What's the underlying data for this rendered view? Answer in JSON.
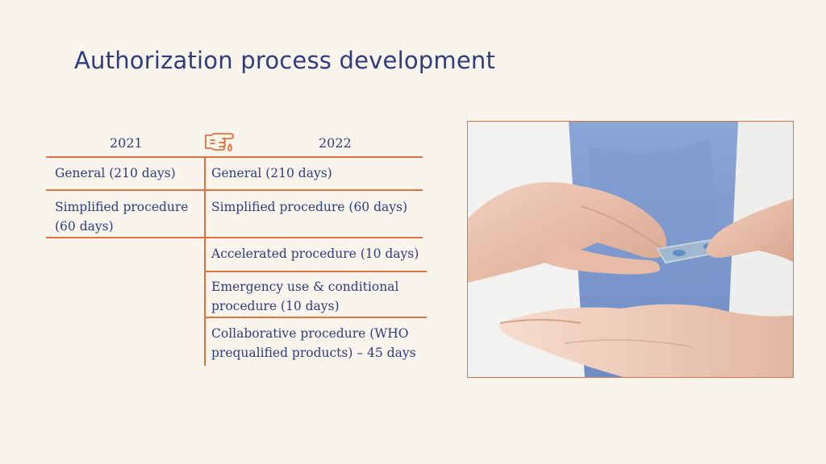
{
  "page": {
    "title": "Authorization process development"
  },
  "table": {
    "col_2021": "2021",
    "col_2022": "2022",
    "rows_2021": [
      "General (210 days)",
      "Simplified procedure (60 days)"
    ],
    "rows_2022": [
      "General (210 days)",
      "Simplified procedure (60 days)",
      "Accelerated procedure (10 days)",
      "Emergency use & conditional procedure  (10 days)",
      "Collaborative procedure (WHO prequalified products) – 45 days"
    ]
  },
  "icons": {
    "transition": "pointing-hand-icon",
    "photo": "hands-holding-blister-pack-photo"
  },
  "colors": {
    "background": "#f9f4ec",
    "text": "#2e3d80",
    "accent": "#e8703f"
  }
}
